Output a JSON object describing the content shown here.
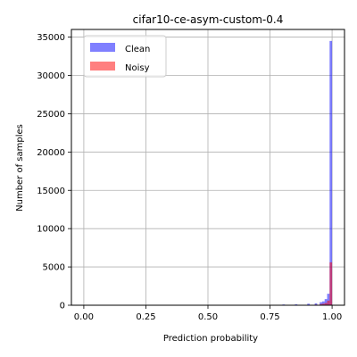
{
  "chart_data": {
    "type": "bar",
    "title": "cifar10-ce-asym-custom-0.4",
    "xlabel": "Prediction probability",
    "ylabel": "Number of samples",
    "xlim": [
      -0.05,
      1.05
    ],
    "ylim": [
      0,
      36000
    ],
    "xticks": [
      "0.00",
      "0.25",
      "0.50",
      "0.75",
      "1.00"
    ],
    "xtick_values": [
      0,
      0.25,
      0.5,
      0.75,
      1.0
    ],
    "yticks": [
      "0",
      "5000",
      "10000",
      "15000",
      "20000",
      "25000",
      "30000",
      "35000"
    ],
    "ytick_values": [
      0,
      5000,
      10000,
      15000,
      20000,
      25000,
      30000,
      35000
    ],
    "grid": true,
    "legend_placement": "top-left",
    "bin_width": 0.01,
    "series": [
      {
        "name": "Clean",
        "color": "#0000ff",
        "opacity": 0.5,
        "bin_starts": [
          0.5,
          0.6,
          0.7,
          0.8,
          0.85,
          0.9,
          0.93,
          0.95,
          0.96,
          0.97,
          0.98,
          0.99
        ],
        "counts": [
          30,
          50,
          60,
          100,
          120,
          200,
          250,
          400,
          500,
          800,
          1500,
          34500
        ]
      },
      {
        "name": "Noisy",
        "color": "#ff0000",
        "opacity": 0.5,
        "bin_starts": [
          0.5,
          0.6,
          0.7,
          0.8,
          0.85,
          0.9,
          0.93,
          0.95,
          0.96,
          0.97,
          0.98,
          0.99
        ],
        "counts": [
          10,
          20,
          20,
          30,
          40,
          60,
          80,
          150,
          200,
          300,
          600,
          5600
        ]
      }
    ]
  }
}
